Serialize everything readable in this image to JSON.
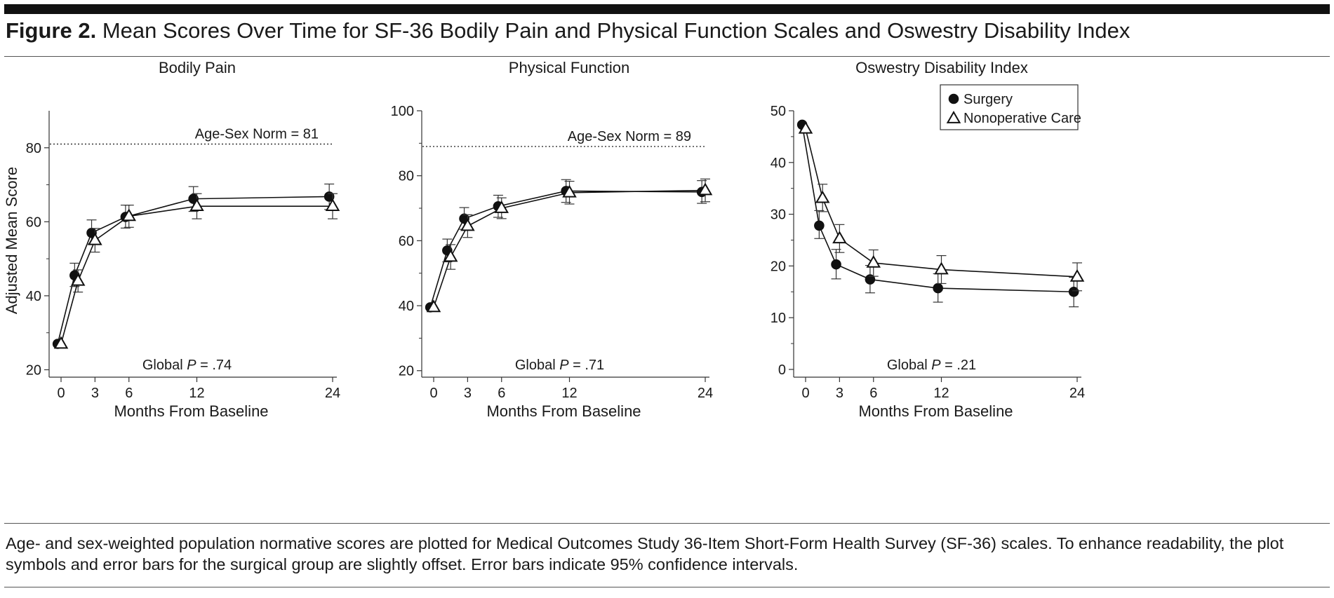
{
  "figure": {
    "label": "Figure 2.",
    "title": "Mean Scores Over Time for SF-36 Bodily Pain and Physical Function Scales and Oswestry Disability Index",
    "caption": "Age- and sex-weighted population normative scores are plotted for Medical Outcomes Study 36-Item Short-Form Health Survey (SF-36) scales. To enhance readability, the plot symbols and error bars for the surgical group are slightly offset. Error bars indicate 95% confidence intervals."
  },
  "legend": {
    "entries": [
      {
        "name": "Surgery",
        "marker": "filled-circle"
      },
      {
        "name": "Nonoperative Care",
        "marker": "open-triangle"
      }
    ]
  },
  "chart_data": [
    {
      "type": "line",
      "title": "Bodily Pain",
      "xlabel": "Months From Baseline",
      "ylabel": "Adjusted Mean Score",
      "xticks": [
        0,
        3,
        6,
        12,
        24
      ],
      "yticks": [
        20,
        40,
        60,
        80
      ],
      "xlim": [
        -1,
        24.5
      ],
      "ylim": [
        18,
        90
      ],
      "norm": {
        "value": 81,
        "label": "Age-Sex Norm = 81"
      },
      "annotation": {
        "prefix": "Global ",
        "pvar": "P",
        "suffix": " = .74"
      },
      "series": [
        {
          "name": "Surgery",
          "x": [
            -0.3,
            1.2,
            2.7,
            5.7,
            11.7,
            23.7
          ],
          "y": [
            27,
            45.5,
            57,
            61.3,
            66.2,
            66.8
          ],
          "lower": [
            null,
            42.5,
            54,
            58.3,
            62.8,
            63.3
          ],
          "upper": [
            null,
            48.8,
            60.5,
            64.5,
            69.5,
            70.2
          ]
        },
        {
          "name": "Nonoperative Care",
          "x": [
            0,
            1.5,
            3,
            6,
            12,
            24
          ],
          "y": [
            27,
            44,
            55,
            61.5,
            64.2,
            64.2
          ],
          "lower": [
            null,
            41,
            51.8,
            58.5,
            60.8,
            60.8
          ],
          "upper": [
            null,
            47,
            58.2,
            64.5,
            67.6,
            67.6
          ]
        }
      ]
    },
    {
      "type": "line",
      "title": "Physical Function",
      "xlabel": "Months From Baseline",
      "ylabel": "",
      "xticks": [
        0,
        3,
        6,
        12,
        24
      ],
      "yticks": [
        20,
        40,
        60,
        80,
        100
      ],
      "xlim": [
        -1,
        24.5
      ],
      "ylim": [
        18,
        100
      ],
      "norm": {
        "value": 89,
        "label": "Age-Sex Norm = 89"
      },
      "annotation": {
        "prefix": "Global ",
        "pvar": "P",
        "suffix": " = .71"
      },
      "series": [
        {
          "name": "Surgery",
          "x": [
            -0.3,
            1.2,
            2.7,
            5.7,
            11.7,
            23.7
          ],
          "y": [
            39.5,
            57,
            66.8,
            70.6,
            75.3,
            75
          ],
          "lower": [
            null,
            53.5,
            63.5,
            67.2,
            71.8,
            71.5
          ],
          "upper": [
            null,
            60.5,
            70.2,
            74,
            78.8,
            78.5
          ]
        },
        {
          "name": "Nonoperative Care",
          "x": [
            0,
            1.5,
            3,
            6,
            12,
            24
          ],
          "y": [
            39.5,
            55,
            64.5,
            70,
            74.8,
            75.5
          ],
          "lower": [
            null,
            51.2,
            61,
            66.8,
            71.3,
            72
          ],
          "upper": [
            null,
            58.8,
            68,
            73.2,
            78.3,
            79
          ]
        }
      ]
    },
    {
      "type": "line",
      "title": "Oswestry Disability Index",
      "xlabel": "Months From Baseline",
      "ylabel": "",
      "xticks": [
        0,
        3,
        6,
        12,
        24
      ],
      "yticks": [
        0,
        10,
        20,
        30,
        40,
        50
      ],
      "xlim": [
        -1,
        24.5
      ],
      "ylim": [
        -1.5,
        50
      ],
      "norm": null,
      "annotation": {
        "prefix": "Global ",
        "pvar": "P",
        "suffix": " = .21"
      },
      "series": [
        {
          "name": "Surgery",
          "x": [
            -0.3,
            1.2,
            2.7,
            5.7,
            11.7,
            23.7
          ],
          "y": [
            47.3,
            27.8,
            20.3,
            17.4,
            15.7,
            15
          ],
          "lower": [
            null,
            25.3,
            17.5,
            14.8,
            13,
            12.1
          ],
          "upper": [
            null,
            30.7,
            23.2,
            20.1,
            18.5,
            17.8
          ]
        },
        {
          "name": "Nonoperative Care",
          "x": [
            0,
            1.5,
            3,
            6,
            12,
            24
          ],
          "y": [
            46.5,
            33.1,
            25.3,
            20.6,
            19.3,
            17.9
          ],
          "lower": [
            null,
            30.5,
            22.6,
            18,
            16.6,
            15.2
          ],
          "upper": [
            null,
            35.8,
            28,
            23.1,
            22,
            20.6
          ]
        }
      ]
    }
  ]
}
